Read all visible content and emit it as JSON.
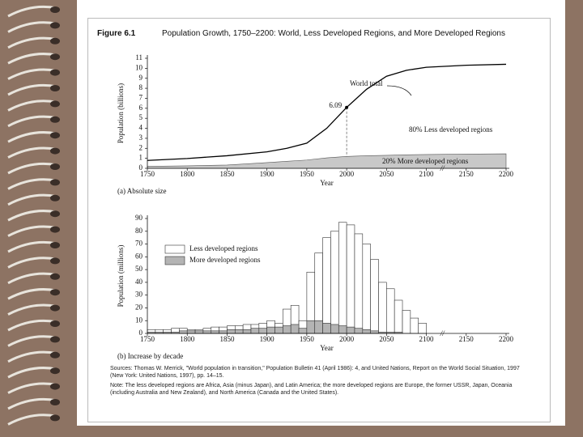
{
  "figure": {
    "label": "Figure 6.1",
    "title": "Population Growth, 1750–2200: World, Less Developed Regions, and More Developed Regions",
    "sources": "Sources: Thomas W. Merrick, \"World population in transition,\" Population Bulletin 41 (April 1986): 4, and United Nations, Report on the World Social Situation, 1997 (New York: United Nations, 1997), pp. 14–15.",
    "note": "Note: The less developed regions are Africa, Asia (minus Japan), and Latin America; the more developed regions are Europe, the former USSR, Japan, Oceania (including Australia and New Zealand), and North America (Canada and the United States)."
  },
  "chart_data": [
    {
      "type": "line",
      "caption": "(a) Absolute size",
      "x_label": "Year",
      "y_label": "Population (billions)",
      "x": [
        1750,
        1800,
        1850,
        1900,
        1925,
        1950,
        1975,
        2000,
        2025,
        2050,
        2075,
        2100,
        2150,
        2200
      ],
      "series": [
        {
          "color": "#000000",
          "values": [
            0.79,
            0.98,
            1.26,
            1.65,
            2.0,
            2.52,
            4.0,
            6.09,
            7.9,
            9.2,
            9.8,
            10.1,
            10.3,
            10.4
          ],
          "value_labels": [
            null,
            null,
            null,
            null,
            null,
            null,
            null,
            "6.09",
            null,
            null,
            null,
            null,
            null,
            null
          ]
        },
        {
          "color": "#c8c8c8",
          "area": true,
          "values": [
            0.2,
            0.25,
            0.33,
            0.57,
            0.7,
            0.83,
            1.05,
            1.19,
            1.26,
            1.3,
            1.35,
            1.38,
            1.42,
            1.45
          ]
        }
      ],
      "annotations": [
        "World total",
        "80% Less developed regions",
        "20% More developed regions"
      ],
      "xlim": [
        1750,
        2200
      ],
      "xticks": [
        1750,
        1800,
        1850,
        1900,
        1950,
        2000,
        2050,
        2100,
        2150,
        2200
      ],
      "ylim": [
        0,
        11
      ],
      "yticks": [
        0,
        1,
        2,
        3,
        4,
        5,
        6,
        7,
        8,
        9,
        10,
        11
      ]
    },
    {
      "type": "histogram",
      "caption": "(b) Increase by decade",
      "x_label": "Year",
      "y_label": "Population (millions)",
      "bins": [
        1750,
        1760,
        1770,
        1780,
        1790,
        1800,
        1810,
        1820,
        1830,
        1840,
        1850,
        1860,
        1870,
        1880,
        1890,
        1900,
        1910,
        1920,
        1930,
        1940,
        1950,
        1960,
        1970,
        1980,
        1990,
        2000,
        2010,
        2020,
        2030,
        2040,
        2050,
        2060,
        2070,
        2080,
        2090,
        2100
      ],
      "series": [
        {
          "name": "Less developed regions",
          "color": "#ffffff",
          "values": [
            3,
            3,
            3,
            4,
            4,
            3,
            3,
            4,
            5,
            5,
            6,
            6,
            7,
            7,
            8,
            10,
            8,
            19,
            22,
            10,
            48,
            63,
            75,
            80,
            87,
            85,
            78,
            70,
            58,
            40,
            35,
            26,
            18,
            12,
            8
          ]
        },
        {
          "name": "More developed regions",
          "color": "#b4b4b4",
          "values": [
            1,
            1,
            1,
            1,
            2,
            2,
            2,
            2,
            2,
            2,
            3,
            3,
            3,
            4,
            4,
            5,
            5,
            6,
            7,
            4,
            10,
            10,
            8,
            7,
            6,
            5,
            4,
            3,
            2,
            1,
            1,
            1,
            0,
            0,
            0
          ]
        }
      ],
      "legend": "upper left",
      "xlim": [
        1750,
        2200
      ],
      "xticks": [
        1750,
        1800,
        1850,
        1900,
        1950,
        2000,
        2050,
        2100,
        2150,
        2200
      ],
      "ylim": [
        0,
        90
      ],
      "yticks": [
        0,
        10,
        20,
        30,
        40,
        50,
        60,
        70,
        80,
        90
      ]
    }
  ]
}
